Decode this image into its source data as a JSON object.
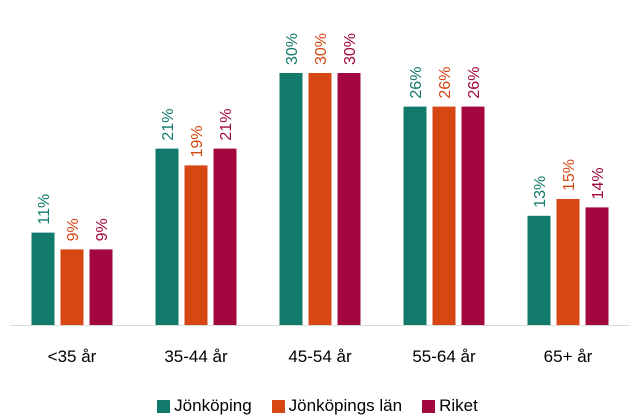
{
  "chart_data": {
    "type": "bar",
    "title": "",
    "xlabel": "",
    "ylabel": "",
    "ylim": [
      0,
      34
    ],
    "categories": [
      "<35 år",
      "35-44 år",
      "45-54 år",
      "55-64 år",
      "65+ år"
    ],
    "series": [
      {
        "name": "Jönköping",
        "color": "#127a6b",
        "values": [
          11,
          21,
          30,
          26,
          13
        ],
        "labels": [
          "11%",
          "21%",
          "30%",
          "26%",
          "13%"
        ]
      },
      {
        "name": "Jönköpings län",
        "color": "#d74713",
        "values": [
          9,
          19,
          30,
          26,
          15
        ],
        "labels": [
          "9%",
          "19%",
          "30%",
          "26%",
          "15%"
        ]
      },
      {
        "name": "Riket",
        "color": "#a3073f",
        "values": [
          9,
          21,
          30,
          26,
          14
        ],
        "labels": [
          "9%",
          "21%",
          "30%",
          "26%",
          "14%"
        ]
      }
    ],
    "legend": "bottom",
    "grid": false
  }
}
